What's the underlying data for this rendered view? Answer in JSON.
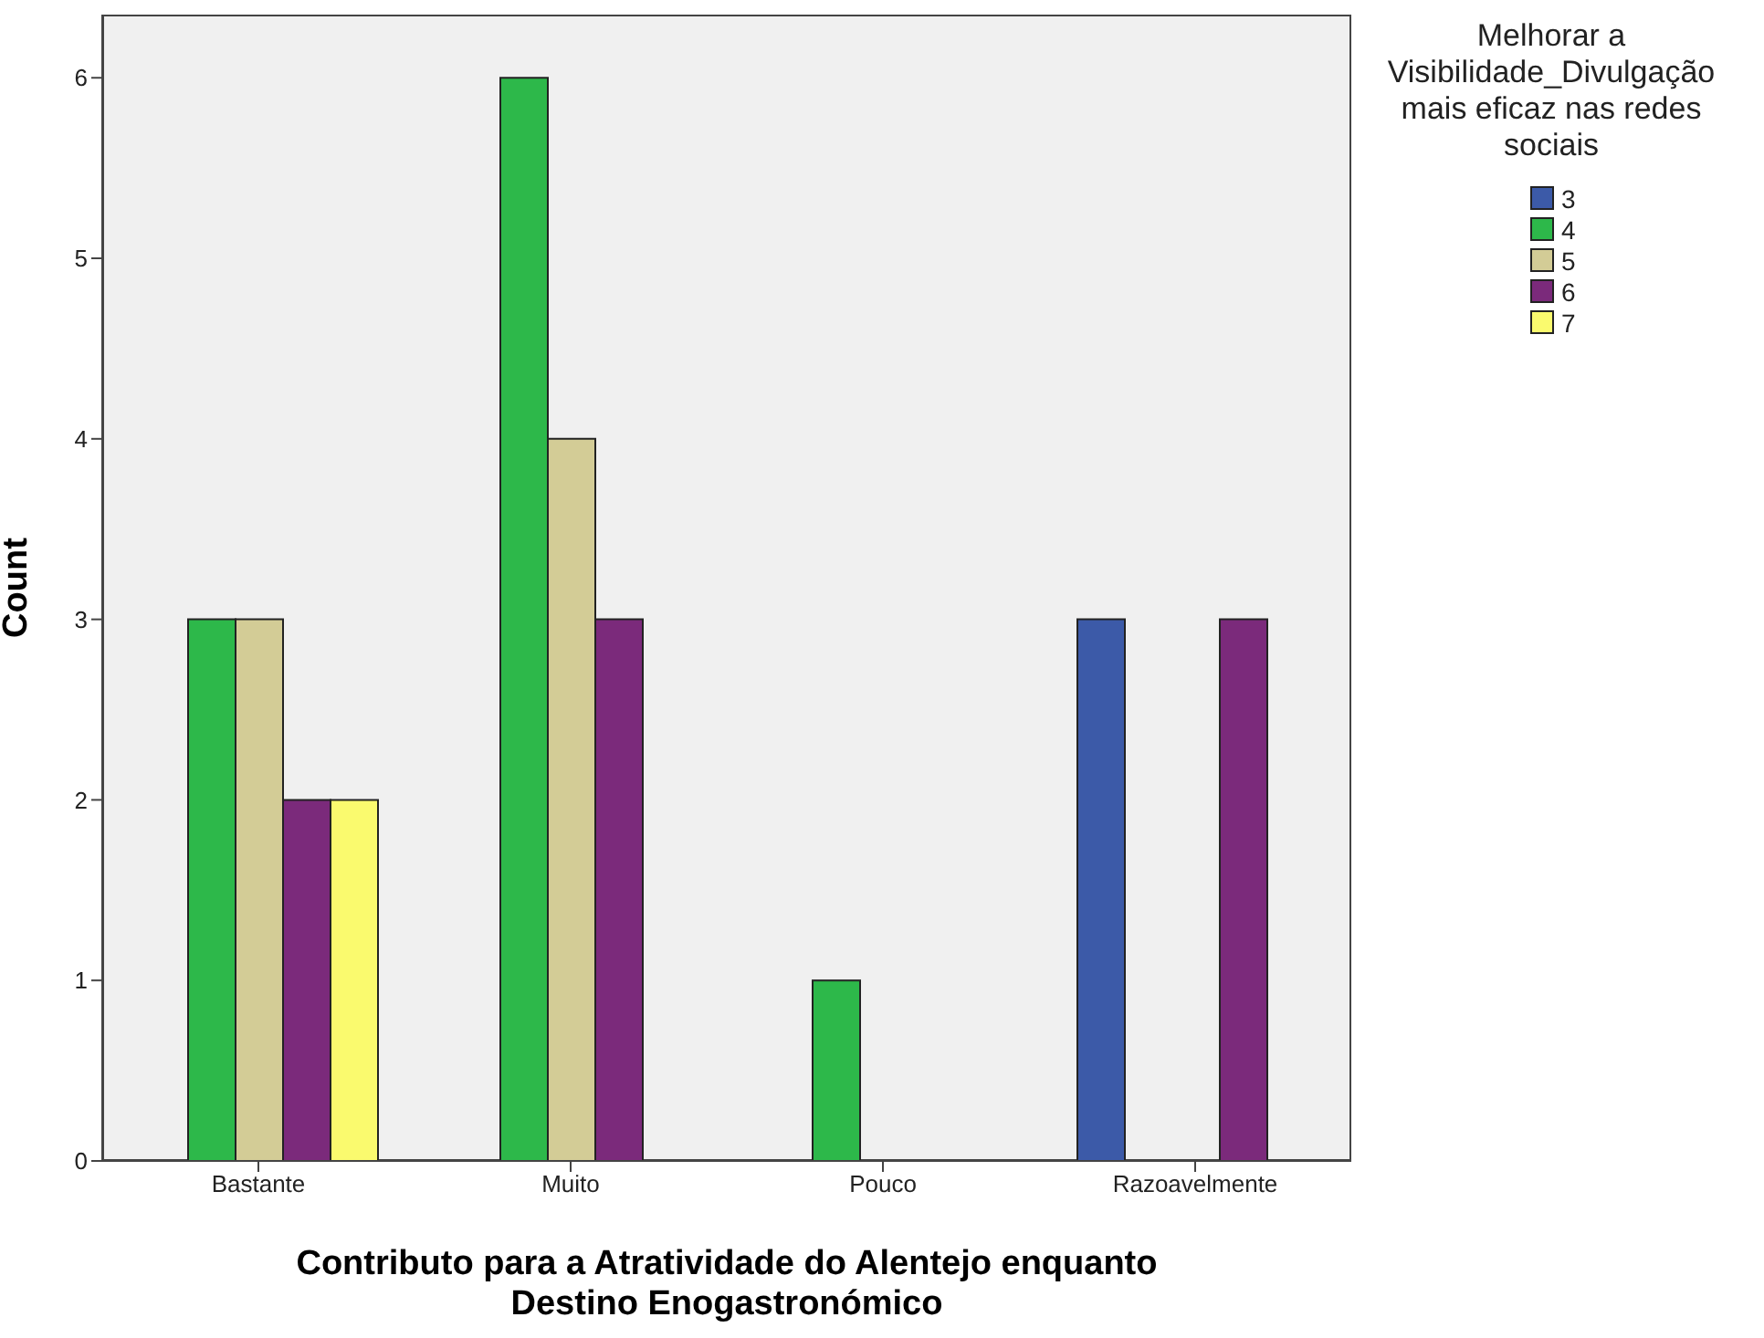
{
  "chart_data": {
    "type": "bar",
    "xlabel": "Contributo para a Atratividade do Alentejo enquanto Destino Enogastronómico",
    "ylabel": "Count",
    "legend_title": "Melhorar a Visibilidade_Divulgação mais eficaz nas redes sociais",
    "categories": [
      "Bastante",
      "Muito",
      "Pouco",
      "Razoavelmente"
    ],
    "series": [
      {
        "name": "3",
        "color": "#3c5aa8",
        "values": [
          null,
          null,
          null,
          3
        ]
      },
      {
        "name": "4",
        "color": "#2db84a",
        "values": [
          3,
          6,
          1,
          null
        ]
      },
      {
        "name": "5",
        "color": "#d3cc96",
        "values": [
          3,
          4,
          null,
          null
        ]
      },
      {
        "name": "6",
        "color": "#7b2a7b",
        "values": [
          2,
          3,
          null,
          3
        ]
      },
      {
        "name": "7",
        "color": "#fafa6e",
        "values": [
          2,
          null,
          null,
          null
        ]
      }
    ],
    "ylim": [
      0,
      6.35
    ],
    "yticks": [
      0,
      1,
      2,
      3,
      4,
      5,
      6
    ],
    "grid": false,
    "legend": "right"
  }
}
